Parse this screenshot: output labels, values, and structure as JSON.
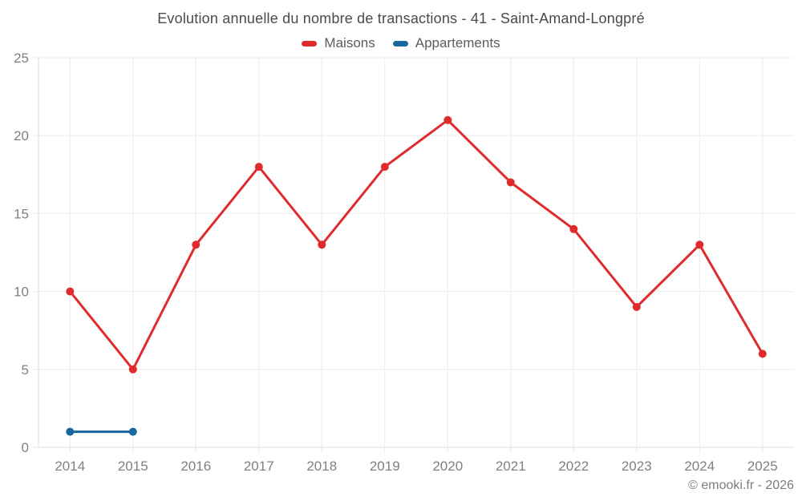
{
  "header": {
    "title": "Evolution annuelle du nombre de transactions - 41 - Saint-Amand-Longpré"
  },
  "footer": {
    "copyright": "© emooki.fr - 2026"
  },
  "colors": {
    "maisons": "#e02b2d",
    "appartements": "#16689e",
    "grid": "#ececec",
    "axis_line": "#dcdcdc",
    "axis_text": "#7e8083",
    "title_text": "#474b4e"
  },
  "chart_data": {
    "type": "line",
    "title": "Evolution annuelle du nombre de transactions - 41 - Saint-Amand-Longpré",
    "categories": [
      "2014",
      "2015",
      "2016",
      "2017",
      "2018",
      "2019",
      "2020",
      "2021",
      "2022",
      "2023",
      "2024",
      "2025"
    ],
    "series": [
      {
        "name": "Maisons",
        "color_key": "maisons",
        "values": [
          10,
          5,
          13,
          18,
          13,
          18,
          21,
          17,
          14,
          9,
          13,
          6
        ]
      },
      {
        "name": "Appartements",
        "color_key": "appartements",
        "values": [
          1,
          1,
          null,
          null,
          null,
          null,
          null,
          null,
          null,
          null,
          null,
          null
        ]
      }
    ],
    "xlabel": "",
    "ylabel": "",
    "ylim": [
      0,
      25
    ],
    "yticks": [
      0,
      5,
      10,
      15,
      20,
      25
    ],
    "grid": true,
    "legend_position": "top"
  }
}
